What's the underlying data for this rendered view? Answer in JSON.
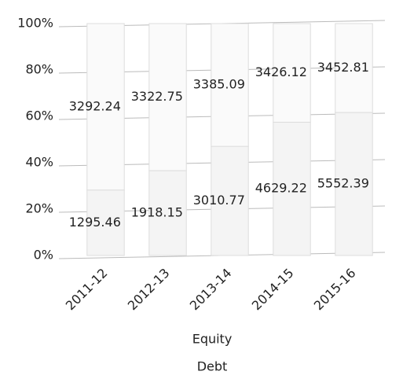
{
  "chart_data": {
    "type": "bar",
    "stacked": "percent",
    "categories": [
      "2011-12",
      "2012-13",
      "2013-14",
      "2014-15",
      "2015-16"
    ],
    "series": [
      {
        "name": "Debt",
        "color": "#f4f4f4",
        "values": [
          1295.46,
          1918.15,
          3010.77,
          4629.22,
          5552.39
        ]
      },
      {
        "name": "Equity",
        "color": "#fafafa",
        "values": [
          3292.24,
          3322.75,
          3385.09,
          3426.12,
          3452.81
        ]
      }
    ],
    "ylim": [
      0,
      100
    ],
    "yticks": [
      {
        "value": 0,
        "label": "0%"
      },
      {
        "value": 20,
        "label": "20%"
      },
      {
        "value": 40,
        "label": "40%"
      },
      {
        "value": 60,
        "label": "60%"
      },
      {
        "value": 80,
        "label": "80%"
      },
      {
        "value": 100,
        "label": "100%"
      }
    ],
    "grid": true
  }
}
